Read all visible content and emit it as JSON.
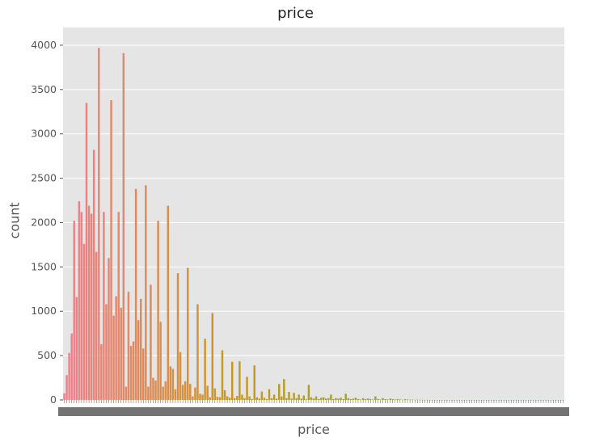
{
  "chart_data": {
    "type": "bar",
    "title": "price",
    "xlabel": "price",
    "ylabel": "count",
    "ylim": [
      0,
      4200
    ],
    "yticks": [
      0,
      500,
      1000,
      1500,
      2000,
      2500,
      3000,
      3500,
      4000
    ],
    "grid": true,
    "legend": "none",
    "colors": {
      "background": "#e5e5e5",
      "grid": "#ffffff",
      "palette_start": "#f17f8f",
      "palette_mid": "#c9971f",
      "palette_mid2": "#8ea63a",
      "palette_end": "#36ad8f"
    },
    "values": [
      75,
      280,
      530,
      750,
      2020,
      1160,
      2240,
      2120,
      1760,
      3350,
      2190,
      2100,
      2820,
      1670,
      3970,
      630,
      2120,
      1080,
      1600,
      3380,
      950,
      1170,
      2120,
      1040,
      3910,
      150,
      1220,
      610,
      660,
      2380,
      900,
      1140,
      580,
      2420,
      150,
      1300,
      250,
      220,
      2020,
      880,
      150,
      210,
      2190,
      380,
      350,
      120,
      1430,
      540,
      170,
      210,
      1490,
      180,
      40,
      140,
      1080,
      70,
      60,
      690,
      160,
      30,
      980,
      130,
      35,
      30,
      560,
      110,
      40,
      25,
      430,
      20,
      45,
      435,
      60,
      20,
      260,
      40,
      10,
      390,
      30,
      15,
      95,
      25,
      10,
      120,
      20,
      60,
      15,
      180,
      40,
      235,
      20,
      90,
      15,
      80,
      20,
      60,
      15,
      50,
      10,
      170,
      30,
      15,
      40,
      10,
      25,
      30,
      15,
      20,
      60,
      10,
      20,
      15,
      25,
      10,
      70,
      20,
      10,
      15,
      25,
      10,
      5,
      20,
      10,
      15,
      10,
      5,
      40,
      10,
      5,
      20,
      10,
      5,
      15,
      10,
      5,
      10,
      5,
      3,
      8,
      5,
      3,
      4,
      2,
      3,
      2,
      2,
      1,
      2,
      1,
      1,
      1,
      1,
      1,
      1,
      1,
      1,
      1,
      1,
      1,
      1,
      1,
      1,
      1,
      1,
      1,
      1,
      1,
      1,
      1,
      1,
      1,
      1,
      1,
      1,
      1,
      1,
      1,
      1,
      1,
      1,
      1,
      1,
      1,
      1,
      1,
      1,
      1,
      1,
      1,
      1,
      1,
      1,
      1,
      1,
      1,
      1,
      1,
      1,
      1,
      1,
      1,
      1,
      1
    ]
  }
}
